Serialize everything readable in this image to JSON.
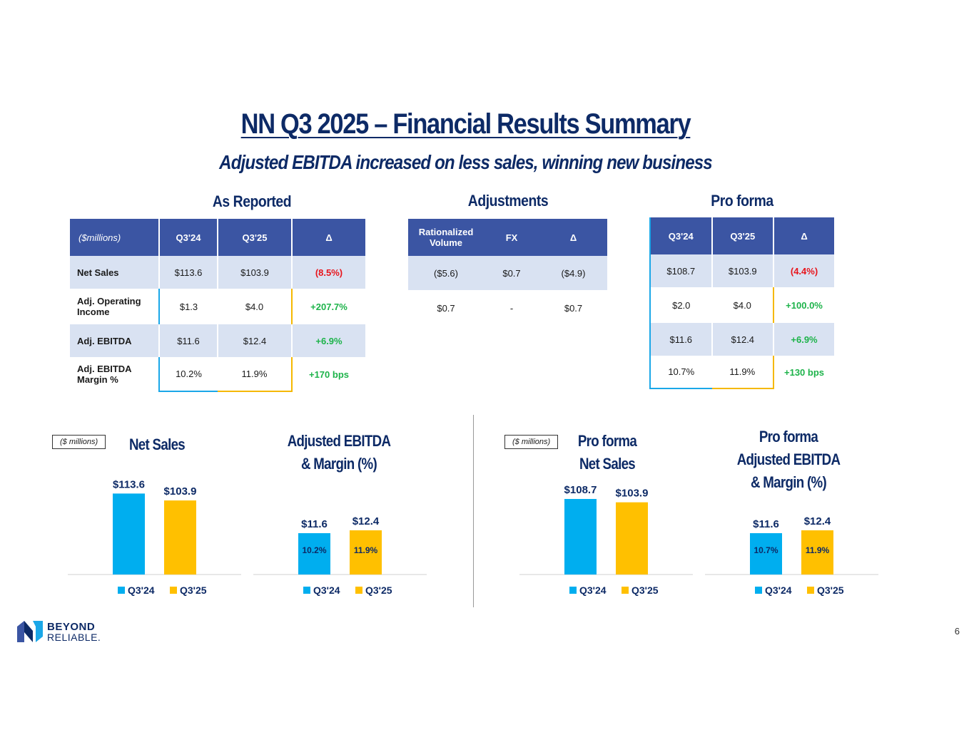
{
  "header": {
    "title": "NN Q3 2025 – Financial Results Summary",
    "subtitle": "Adjusted EBITDA increased on less sales, winning new business"
  },
  "sections": {
    "as_reported": "As Reported",
    "adjustments": "Adjustments",
    "pro_forma": "Pro forma"
  },
  "as_reported_table": {
    "headers": [
      "($millions)",
      "Q3'24",
      "Q3'25",
      "Δ"
    ],
    "rows": [
      {
        "label": "Net Sales",
        "q324": "$113.6",
        "q325": "$103.9",
        "delta": "(8.5%)"
      },
      {
        "label": "Adj. Operating Income",
        "q324": "$1.3",
        "q325": "$4.0",
        "delta": "+207.7%"
      },
      {
        "label": "Adj. EBITDA",
        "q324": "$11.6",
        "q325": "$12.4",
        "delta": "+6.9%"
      },
      {
        "label": "Adj. EBITDA Margin %",
        "q324": "10.2%",
        "q325": "11.9%",
        "delta": "+170 bps"
      }
    ]
  },
  "adjustments_table": {
    "headers": [
      "Rationalized Volume",
      "FX",
      "Δ"
    ],
    "rows": [
      {
        "vol": "($5.6)",
        "fx": "$0.7",
        "delta": "($4.9)"
      },
      {
        "vol": "$0.7",
        "fx": "-",
        "delta": "$0.7"
      }
    ]
  },
  "pro_forma_table": {
    "headers": [
      "Q3'24",
      "Q3'25",
      "Δ"
    ],
    "rows": [
      {
        "q324": "$108.7",
        "q325": "$103.9",
        "delta": "(4.4%)"
      },
      {
        "q324": "$2.0",
        "q325": "$4.0",
        "delta": "+100.0%"
      },
      {
        "q324": "$11.6",
        "q325": "$12.4",
        "delta": "+6.9%"
      },
      {
        "q324": "10.7%",
        "q325": "11.9%",
        "delta": "+130 bps"
      }
    ]
  },
  "millions_label": "($ millions)",
  "colors": {
    "q324": "#00aeef",
    "q325": "#ffc000",
    "navy": "#0d2a66",
    "header_blue": "#3b55a3"
  },
  "chart_data": [
    {
      "type": "bar",
      "title": "Net Sales",
      "categories": [
        "Q3'24",
        "Q3'25"
      ],
      "values": [
        113.6,
        103.9
      ],
      "value_labels": [
        "$113.6",
        "$103.9"
      ],
      "legend": [
        "Q3'24",
        "Q3'25"
      ]
    },
    {
      "type": "bar",
      "title": "Adjusted EBITDA & Margin (%)",
      "categories": [
        "Q3'24",
        "Q3'25"
      ],
      "values": [
        11.6,
        12.4
      ],
      "value_labels": [
        "$11.6",
        "$12.4"
      ],
      "inner_labels": [
        "10.2%",
        "11.9%"
      ],
      "legend": [
        "Q3'24",
        "Q3'25"
      ]
    },
    {
      "type": "bar",
      "title": "Pro forma Net Sales",
      "categories": [
        "Q3'24",
        "Q3'25"
      ],
      "values": [
        108.7,
        103.9
      ],
      "value_labels": [
        "$108.7",
        "$103.9"
      ],
      "legend": [
        "Q3'24",
        "Q3'25"
      ]
    },
    {
      "type": "bar",
      "title": "Pro forma Adjusted EBITDA & Margin (%)",
      "categories": [
        "Q3'24",
        "Q3'25"
      ],
      "values": [
        11.6,
        12.4
      ],
      "value_labels": [
        "$11.6",
        "$12.4"
      ],
      "inner_labels": [
        "10.7%",
        "11.9%"
      ],
      "legend": [
        "Q3'24",
        "Q3'25"
      ]
    }
  ],
  "footer": {
    "logo_line1": "BEYOND",
    "logo_line2": "RELIABLE.",
    "page_number": "6"
  }
}
